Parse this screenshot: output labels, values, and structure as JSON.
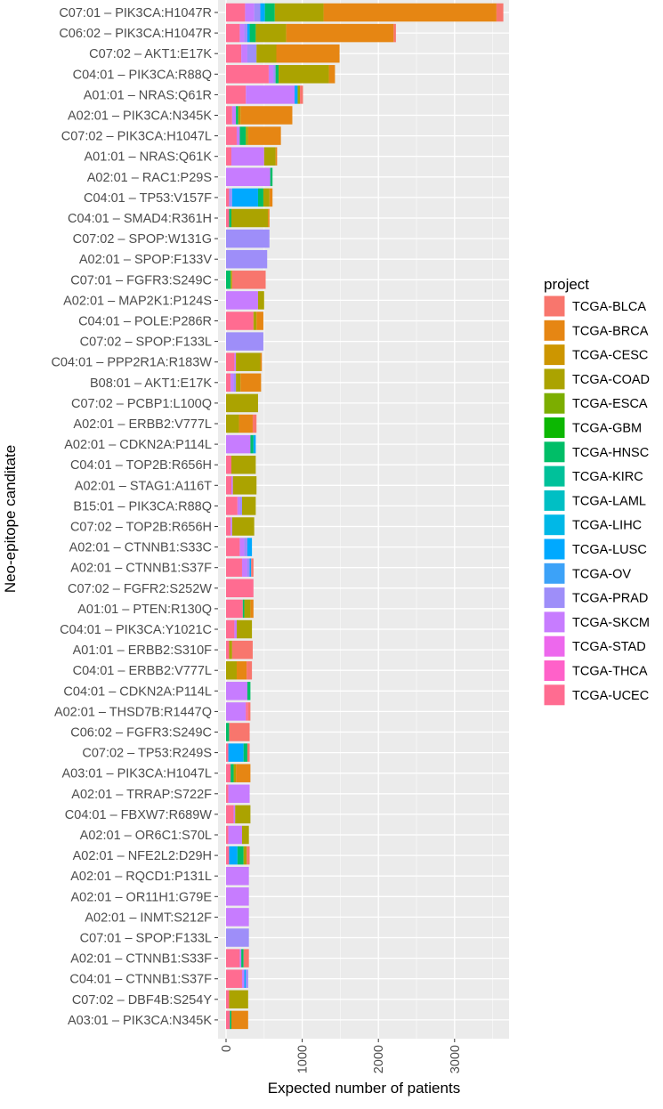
{
  "chart_data": {
    "type": "bar",
    "orientation": "horizontal",
    "stacked": true,
    "xlabel": "Expected number of patients",
    "ylabel": "Neo-epitope canditate",
    "xlim": [
      0,
      3700
    ],
    "xticks": [
      0,
      1000,
      2000,
      3000
    ],
    "xtick_labels": [
      "0",
      "1000",
      "2000",
      "3000"
    ],
    "grid": true,
    "legend": {
      "title": "project",
      "position": "right"
    },
    "series": [
      {
        "name": "TCGA-BLCA",
        "color": "#F8766D"
      },
      {
        "name": "TCGA-BRCA",
        "color": "#E68613"
      },
      {
        "name": "TCGA-CESC",
        "color": "#CD9600"
      },
      {
        "name": "TCGA-COAD",
        "color": "#ABA300"
      },
      {
        "name": "TCGA-ESCA",
        "color": "#7CAE00"
      },
      {
        "name": "TCGA-GBM",
        "color": "#0CB702"
      },
      {
        "name": "TCGA-HNSC",
        "color": "#00BE67"
      },
      {
        "name": "TCGA-KIRC",
        "color": "#00C19A"
      },
      {
        "name": "TCGA-LAML",
        "color": "#00BFC4"
      },
      {
        "name": "TCGA-LIHC",
        "color": "#00B8E7"
      },
      {
        "name": "TCGA-LUSC",
        "color": "#00A9FF"
      },
      {
        "name": "TCGA-OV",
        "color": "#3CA2F8"
      },
      {
        "name": "TCGA-PRAD",
        "color": "#9E8EF9"
      },
      {
        "name": "TCGA-SKCM",
        "color": "#C77CFF"
      },
      {
        "name": "TCGA-STAD",
        "color": "#ED68ED"
      },
      {
        "name": "TCGA-THCA",
        "color": "#FF61C9"
      },
      {
        "name": "TCGA-UCEC",
        "color": "#FF6C91"
      }
    ],
    "categories": [
      "C07:01 – PIK3CA:H1047R",
      "C06:02 – PIK3CA:H1047R",
      "C07:02 – AKT1:E17K",
      "C04:01 – PIK3CA:R88Q",
      "A01:01 – NRAS:Q61R",
      "A02:01 – PIK3CA:N345K",
      "C07:02 – PIK3CA:H1047L",
      "A01:01 – NRAS:Q61K",
      "A02:01 – RAC1:P29S",
      "C04:01 – TP53:V157F",
      "C04:01 – SMAD4:R361H",
      "C07:02 – SPOP:W131G",
      "A02:01 – SPOP:F133V",
      "C07:01 – FGFR3:S249C",
      "A02:01 – MAP2K1:P124S",
      "C04:01 – POLE:P286R",
      "C07:02 – SPOP:F133L",
      "C04:01 – PPP2R1A:R183W",
      "B08:01 – AKT1:E17K",
      "C07:02 – PCBP1:L100Q",
      "A02:01 – ERBB2:V777L",
      "A02:01 – CDKN2A:P114L",
      "C04:01 – TOP2B:R656H",
      "A02:01 – STAG1:A116T",
      "B15:01 – PIK3CA:R88Q",
      "C07:02 – TOP2B:R656H",
      "A02:01 – CTNNB1:S33C",
      "A02:01 – CTNNB1:S37F",
      "C07:02 – FGFR2:S252W",
      "A01:01 – PTEN:R130Q",
      "C04:01 – PIK3CA:Y1021C",
      "A01:01 – ERBB2:S310F",
      "C04:01 – ERBB2:V777L",
      "C04:01 – CDKN2A:P114L",
      "A02:01 – THSD7B:R1447Q",
      "C06:02 – FGFR3:S249C",
      "C07:02 – TP53:R249S",
      "A03:01 – PIK3CA:H1047L",
      "A02:01 – TRRAP:S722F",
      "C04:01 – FBXW7:R689W",
      "A02:01 – OR6C1:S70L",
      "A02:01 – NFE2L2:D29H",
      "A02:01 – RQCD1:P131L",
      "A02:01 – OR11H1:G79E",
      "A02:01 – INMT:S212F",
      "C07:01 – SPOP:F133L",
      "A02:01 – CTNNB1:S33F",
      "C04:01 – CTNNB1:S37F",
      "C07:02 – DBF4B:S254Y",
      "A03:01 – PIK3CA:N345K"
    ],
    "bars": [
      [
        [
          "TCGA-UCEC",
          250
        ],
        [
          "TCGA-SKCM",
          120
        ],
        [
          "TCGA-PRAD",
          80
        ],
        [
          "TCGA-LUSC",
          60
        ],
        [
          "TCGA-HNSC",
          130
        ],
        [
          "TCGA-COAD",
          640
        ],
        [
          "TCGA-BRCA",
          2270
        ],
        [
          "TCGA-BLCA",
          90
        ]
      ],
      [
        [
          "TCGA-UCEC",
          180
        ],
        [
          "TCGA-SKCM",
          60
        ],
        [
          "TCGA-PRAD",
          40
        ],
        [
          "TCGA-LUSC",
          30
        ],
        [
          "TCGA-HNSC",
          80
        ],
        [
          "TCGA-COAD",
          400
        ],
        [
          "TCGA-BRCA",
          1410
        ],
        [
          "TCGA-BLCA",
          30
        ]
      ],
      [
        [
          "TCGA-UCEC",
          200
        ],
        [
          "TCGA-SKCM",
          80
        ],
        [
          "TCGA-PRAD",
          120
        ],
        [
          "TCGA-COAD",
          260
        ],
        [
          "TCGA-BRCA",
          830
        ]
      ],
      [
        [
          "TCGA-UCEC",
          560
        ],
        [
          "TCGA-SKCM",
          60
        ],
        [
          "TCGA-PRAD",
          30
        ],
        [
          "TCGA-HNSC",
          40
        ],
        [
          "TCGA-COAD",
          660
        ],
        [
          "TCGA-BRCA",
          80
        ]
      ],
      [
        [
          "TCGA-UCEC",
          260
        ],
        [
          "TCGA-SKCM",
          640
        ],
        [
          "TCGA-LUSC",
          40
        ],
        [
          "TCGA-COAD",
          30
        ],
        [
          "TCGA-BLCA",
          40
        ]
      ],
      [
        [
          "TCGA-UCEC",
          80
        ],
        [
          "TCGA-SKCM",
          50
        ],
        [
          "TCGA-HNSC",
          30
        ],
        [
          "TCGA-COAD",
          30
        ],
        [
          "TCGA-BRCA",
          680
        ]
      ],
      [
        [
          "TCGA-UCEC",
          140
        ],
        [
          "TCGA-SKCM",
          40
        ],
        [
          "TCGA-HNSC",
          80
        ],
        [
          "TCGA-COAD",
          30
        ],
        [
          "TCGA-BRCA",
          430
        ]
      ],
      [
        [
          "TCGA-UCEC",
          70
        ],
        [
          "TCGA-SKCM",
          430
        ],
        [
          "TCGA-COAD",
          150
        ],
        [
          "TCGA-BRCA",
          20
        ]
      ],
      [
        [
          "TCGA-SKCM",
          580
        ],
        [
          "TCGA-HNSC",
          30
        ]
      ],
      [
        [
          "TCGA-UCEC",
          40
        ],
        [
          "TCGA-PRAD",
          40
        ],
        [
          "TCGA-LUSC",
          340
        ],
        [
          "TCGA-HNSC",
          70
        ],
        [
          "TCGA-COAD",
          80
        ],
        [
          "TCGA-BRCA",
          40
        ]
      ],
      [
        [
          "TCGA-UCEC",
          40
        ],
        [
          "TCGA-HNSC",
          30
        ],
        [
          "TCGA-COAD",
          480
        ],
        [
          "TCGA-BRCA",
          20
        ]
      ],
      [
        [
          "TCGA-PRAD",
          570
        ]
      ],
      [
        [
          "TCGA-PRAD",
          540
        ]
      ],
      [
        [
          "TCGA-HNSC",
          60
        ],
        [
          "TCGA-COAD",
          20
        ],
        [
          "TCGA-BLCA",
          440
        ]
      ],
      [
        [
          "TCGA-SKCM",
          420
        ],
        [
          "TCGA-COAD",
          80
        ]
      ],
      [
        [
          "TCGA-UCEC",
          360
        ],
        [
          "TCGA-COAD",
          40
        ],
        [
          "TCGA-BRCA",
          90
        ]
      ],
      [
        [
          "TCGA-PRAD",
          490
        ]
      ],
      [
        [
          "TCGA-UCEC",
          110
        ],
        [
          "TCGA-SKCM",
          20
        ],
        [
          "TCGA-COAD",
          320
        ],
        [
          "TCGA-BRCA",
          20
        ]
      ],
      [
        [
          "TCGA-UCEC",
          60
        ],
        [
          "TCGA-SKCM",
          40
        ],
        [
          "TCGA-PRAD",
          30
        ],
        [
          "TCGA-COAD",
          60
        ],
        [
          "TCGA-BRCA",
          270
        ]
      ],
      [
        [
          "TCGA-COAD",
          420
        ]
      ],
      [
        [
          "TCGA-COAD",
          170
        ],
        [
          "TCGA-BRCA",
          180
        ],
        [
          "TCGA-BLCA",
          50
        ]
      ],
      [
        [
          "TCGA-SKCM",
          320
        ],
        [
          "TCGA-HNSC",
          40
        ],
        [
          "TCGA-LUSC",
          30
        ]
      ],
      [
        [
          "TCGA-UCEC",
          70
        ],
        [
          "TCGA-COAD",
          320
        ]
      ],
      [
        [
          "TCGA-UCEC",
          70
        ],
        [
          "TCGA-SKCM",
          20
        ],
        [
          "TCGA-COAD",
          310
        ]
      ],
      [
        [
          "TCGA-UCEC",
          150
        ],
        [
          "TCGA-SKCM",
          30
        ],
        [
          "TCGA-PRAD",
          30
        ],
        [
          "TCGA-COAD",
          180
        ]
      ],
      [
        [
          "TCGA-UCEC",
          60
        ],
        [
          "TCGA-SKCM",
          20
        ],
        [
          "TCGA-COAD",
          290
        ]
      ],
      [
        [
          "TCGA-UCEC",
          180
        ],
        [
          "TCGA-SKCM",
          60
        ],
        [
          "TCGA-PRAD",
          40
        ],
        [
          "TCGA-LUSC",
          60
        ]
      ],
      [
        [
          "TCGA-UCEC",
          210
        ],
        [
          "TCGA-SKCM",
          70
        ],
        [
          "TCGA-PRAD",
          30
        ],
        [
          "TCGA-LUSC",
          20
        ],
        [
          "TCGA-BLCA",
          30
        ]
      ],
      [
        [
          "TCGA-UCEC",
          360
        ]
      ],
      [
        [
          "TCGA-UCEC",
          220
        ],
        [
          "TCGA-HNSC",
          20
        ],
        [
          "TCGA-COAD",
          80
        ],
        [
          "TCGA-BRCA",
          40
        ]
      ],
      [
        [
          "TCGA-UCEC",
          110
        ],
        [
          "TCGA-SKCM",
          30
        ],
        [
          "TCGA-COAD",
          200
        ]
      ],
      [
        [
          "TCGA-UCEC",
          40
        ],
        [
          "TCGA-COAD",
          40
        ],
        [
          "TCGA-BLCA",
          270
        ]
      ],
      [
        [
          "TCGA-COAD",
          140
        ],
        [
          "TCGA-BRCA",
          130
        ],
        [
          "TCGA-BLCA",
          70
        ]
      ],
      [
        [
          "TCGA-SKCM",
          280
        ],
        [
          "TCGA-HNSC",
          40
        ]
      ],
      [
        [
          "TCGA-SKCM",
          260
        ],
        [
          "TCGA-UCEC",
          30
        ],
        [
          "TCGA-BLCA",
          30
        ]
      ],
      [
        [
          "TCGA-HNSC",
          40
        ],
        [
          "TCGA-BLCA",
          270
        ]
      ],
      [
        [
          "TCGA-UCEC",
          30
        ],
        [
          "TCGA-LUSC",
          200
        ],
        [
          "TCGA-HNSC",
          50
        ],
        [
          "TCGA-BLCA",
          30
        ]
      ],
      [
        [
          "TCGA-UCEC",
          60
        ],
        [
          "TCGA-HNSC",
          40
        ],
        [
          "TCGA-COAD",
          30
        ],
        [
          "TCGA-BRCA",
          190
        ]
      ],
      [
        [
          "TCGA-UCEC",
          30
        ],
        [
          "TCGA-SKCM",
          280
        ]
      ],
      [
        [
          "TCGA-UCEC",
          100
        ],
        [
          "TCGA-SKCM",
          20
        ],
        [
          "TCGA-COAD",
          200
        ]
      ],
      [
        [
          "TCGA-UCEC",
          30
        ],
        [
          "TCGA-SKCM",
          180
        ],
        [
          "TCGA-COAD",
          90
        ]
      ],
      [
        [
          "TCGA-UCEC",
          40
        ],
        [
          "TCGA-LUSC",
          110
        ],
        [
          "TCGA-HNSC",
          80
        ],
        [
          "TCGA-COAD",
          40
        ],
        [
          "TCGA-BLCA",
          40
        ]
      ],
      [
        [
          "TCGA-SKCM",
          300
        ]
      ],
      [
        [
          "TCGA-SKCM",
          300
        ]
      ],
      [
        [
          "TCGA-SKCM",
          300
        ]
      ],
      [
        [
          "TCGA-PRAD",
          300
        ]
      ],
      [
        [
          "TCGA-UCEC",
          180
        ],
        [
          "TCGA-SKCM",
          20
        ],
        [
          "TCGA-HNSC",
          30
        ],
        [
          "TCGA-BLCA",
          70
        ]
      ],
      [
        [
          "TCGA-UCEC",
          210
        ],
        [
          "TCGA-SKCM",
          30
        ],
        [
          "TCGA-LUSC",
          20
        ],
        [
          "TCGA-PRAD",
          30
        ]
      ],
      [
        [
          "TCGA-UCEC",
          40
        ],
        [
          "TCGA-COAD",
          250
        ]
      ],
      [
        [
          "TCGA-UCEC",
          50
        ],
        [
          "TCGA-HNSC",
          20
        ],
        [
          "TCGA-BRCA",
          220
        ]
      ]
    ]
  }
}
